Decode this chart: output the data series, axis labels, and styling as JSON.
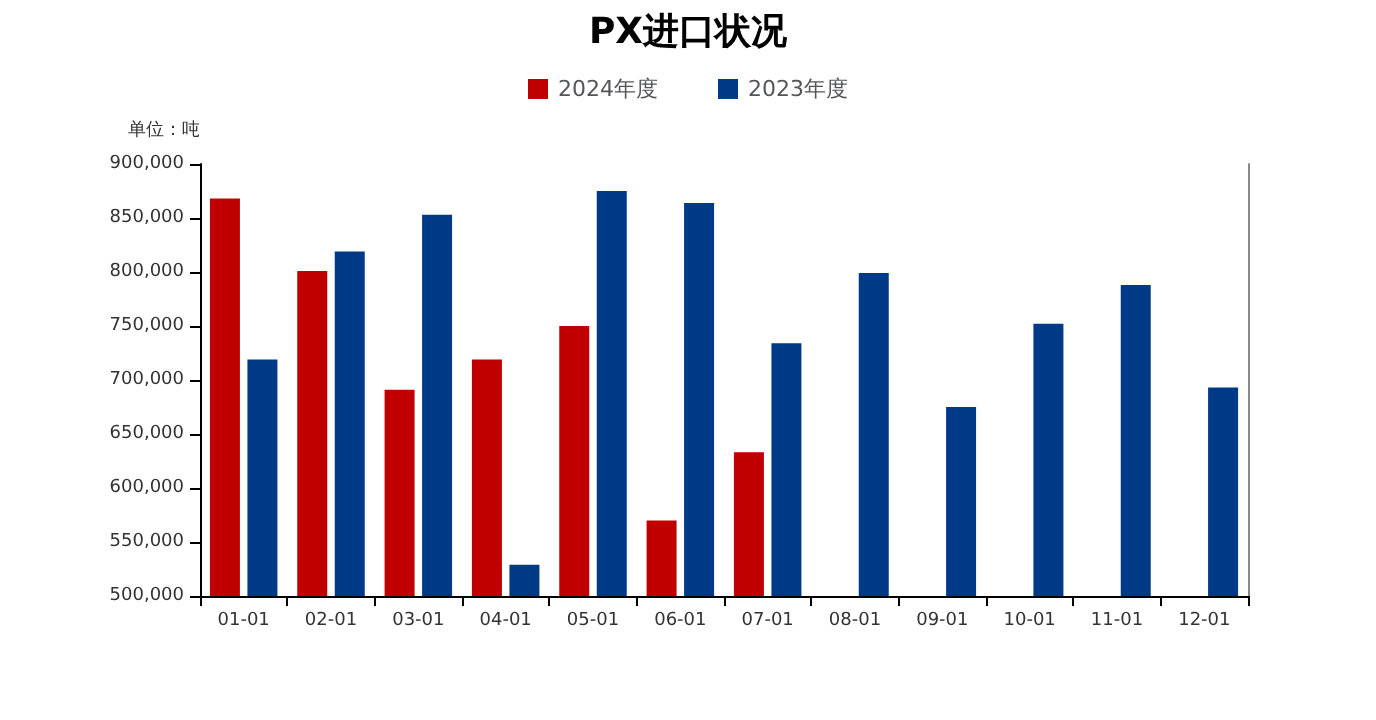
{
  "chart_data": {
    "type": "bar",
    "title": "PX进口状况",
    "ylabel": "单位：吨",
    "categories": [
      "01-01",
      "02-01",
      "03-01",
      "04-01",
      "05-01",
      "06-01",
      "07-01",
      "08-01",
      "09-01",
      "10-01",
      "11-01",
      "12-01"
    ],
    "series": [
      {
        "name": "2024年度",
        "color": "#c00000",
        "values": [
          868000,
          801000,
          691000,
          719000,
          750000,
          570000,
          633000,
          null,
          null,
          null,
          null,
          null
        ]
      },
      {
        "name": "2023年度",
        "color": "#003a86",
        "values": [
          719000,
          819000,
          853000,
          529000,
          875000,
          864000,
          734000,
          799000,
          675000,
          752000,
          788000,
          693000
        ]
      }
    ],
    "ylim": [
      500000,
      900000
    ],
    "yticks": [
      {
        "value": 500000,
        "label": "500,000"
      },
      {
        "value": 550000,
        "label": "550,000"
      },
      {
        "value": 600000,
        "label": "600,000"
      },
      {
        "value": 650000,
        "label": "650,000"
      },
      {
        "value": 700000,
        "label": "700,000"
      },
      {
        "value": 750000,
        "label": "750,000"
      },
      {
        "value": 800000,
        "label": "800,000"
      },
      {
        "value": 850000,
        "label": "850,000"
      },
      {
        "value": 900000,
        "label": "900,000"
      }
    ],
    "grid": false,
    "legend": "top"
  }
}
